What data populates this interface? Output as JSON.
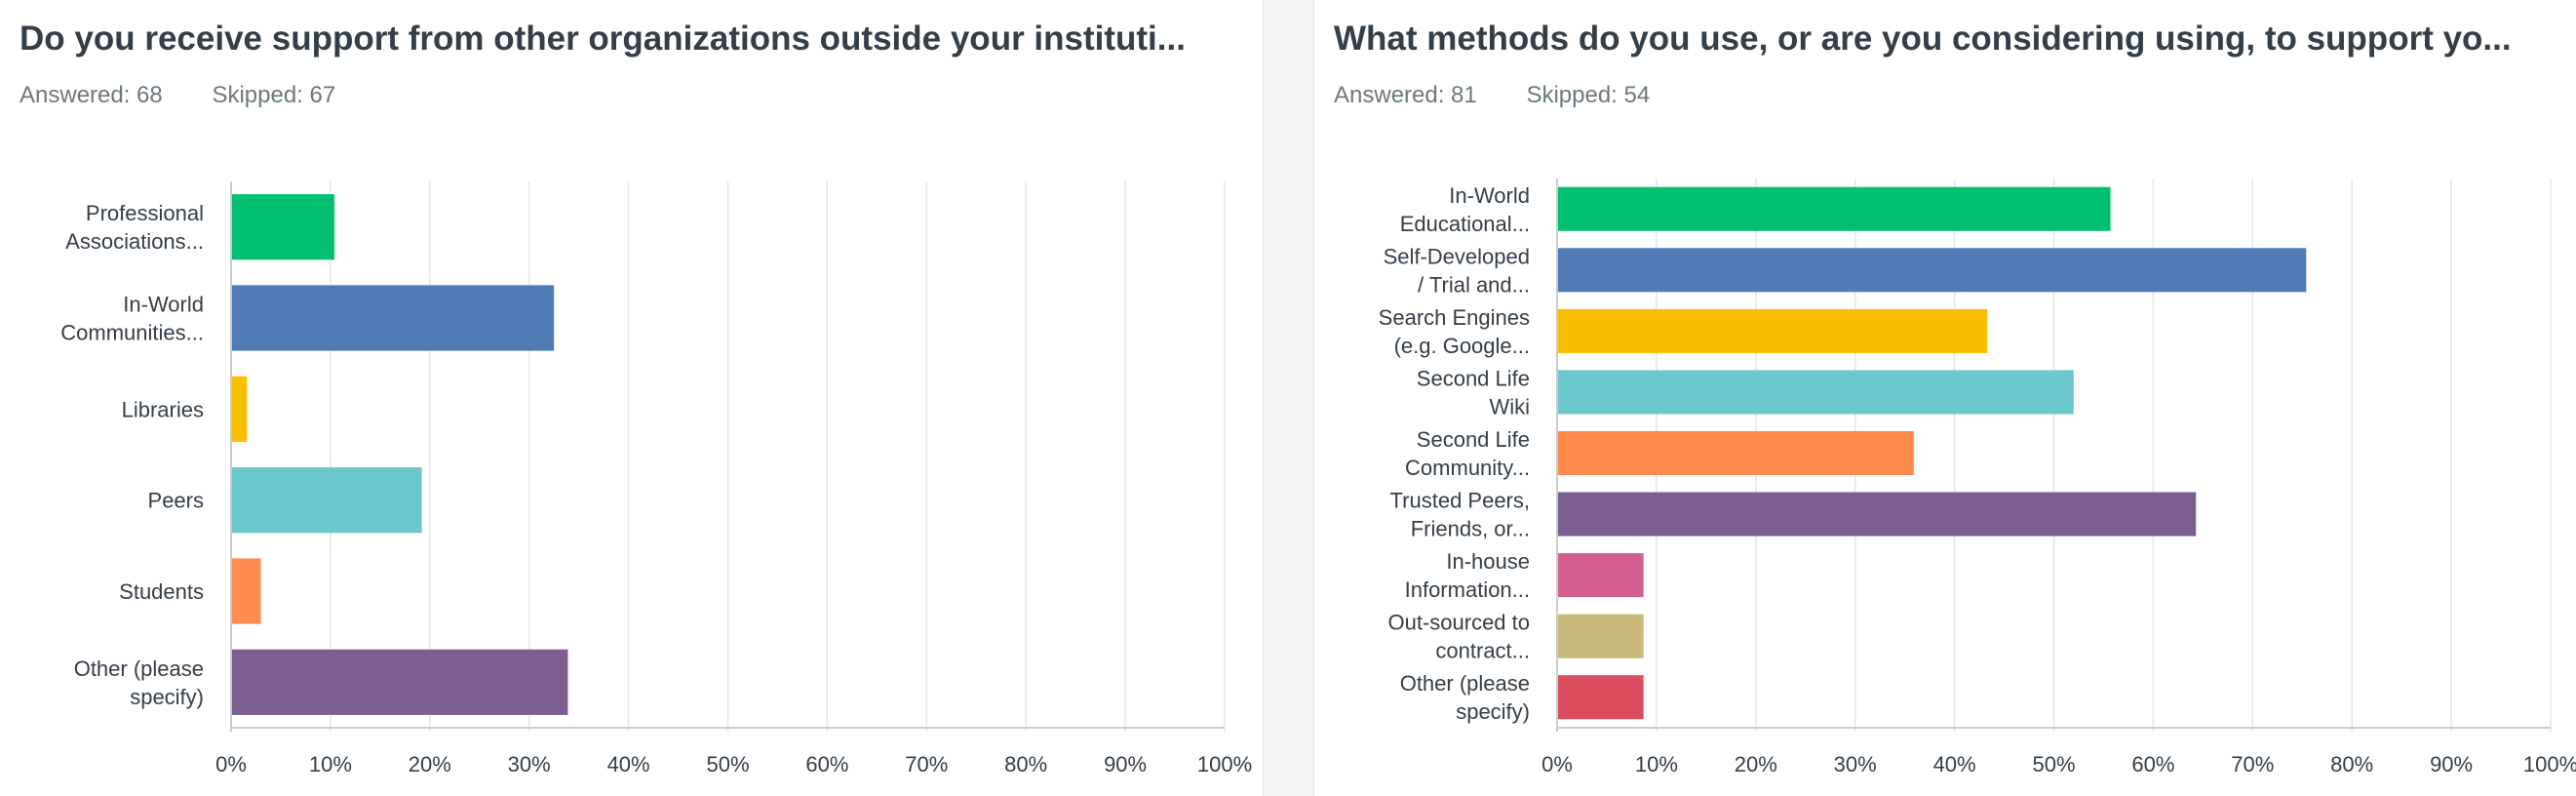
{
  "questions": [
    {
      "title": "Do you receive support from other organizations outside your instituti...",
      "answered_label": "Answered: 68",
      "skipped_label": "Skipped: 67"
    },
    {
      "title": "What methods do you use, or are you considering using, to support yo...",
      "answered_label": "Answered: 81",
      "skipped_label": "Skipped: 54"
    }
  ],
  "chart_data": [
    {
      "type": "bar",
      "orientation": "horizontal",
      "categories": [
        [
          "Professional",
          "Associations..."
        ],
        [
          "In-World",
          "Communities..."
        ],
        [
          "Libraries"
        ],
        [
          "Peers"
        ],
        [
          "Students"
        ],
        [
          "Other (please",
          "specify)"
        ]
      ],
      "values": [
        10.3,
        32.4,
        1.5,
        19.1,
        2.9,
        33.8
      ],
      "colors": [
        "#00bf6f",
        "#507cb6",
        "#f9be00",
        "#6bc8cd",
        "#ff8b4f",
        "#7d5e90"
      ],
      "xlim": [
        0,
        100
      ],
      "xticks": [
        "0%",
        "10%",
        "20%",
        "30%",
        "40%",
        "50%",
        "60%",
        "70%",
        "80%",
        "90%",
        "100%"
      ],
      "grid": true
    },
    {
      "type": "bar",
      "orientation": "horizontal",
      "categories": [
        [
          "In-World",
          "Educational..."
        ],
        [
          "Self-Developed",
          "/ Trial and..."
        ],
        [
          "Search Engines",
          "(e.g. Google..."
        ],
        [
          "Second Life",
          "Wiki"
        ],
        [
          "Second Life",
          "Community..."
        ],
        [
          "Trusted Peers,",
          "Friends, or..."
        ],
        [
          "In-house",
          "Information..."
        ],
        [
          "Out-sourced to",
          "contract..."
        ],
        [
          "Other (please",
          "specify)"
        ]
      ],
      "values": [
        55.6,
        75.3,
        43.2,
        51.9,
        35.8,
        64.2,
        8.6,
        8.6,
        8.6
      ],
      "colors": [
        "#00bf6f",
        "#507cb6",
        "#f9be00",
        "#6bc8cd",
        "#ff8b4f",
        "#7d5e90",
        "#d25f90",
        "#c9b97a",
        "#dc4e5f"
      ],
      "xlim": [
        0,
        100
      ],
      "xticks": [
        "0%",
        "10%",
        "20%",
        "30%",
        "40%",
        "50%",
        "60%",
        "70%",
        "80%",
        "90%",
        "100%"
      ],
      "grid": true
    }
  ]
}
